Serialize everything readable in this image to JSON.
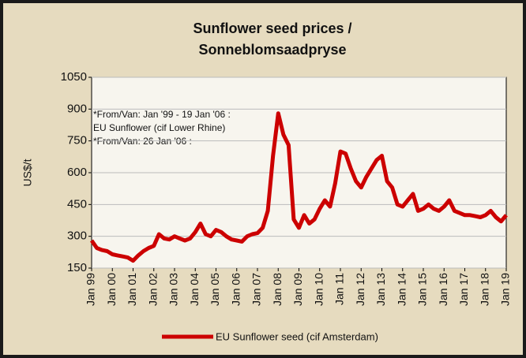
{
  "chart_data": {
    "type": "line",
    "title": [
      "Sunflower seed prices /",
      "Sonneblomsaadpryse"
    ],
    "y_label": "US$/t",
    "annotations": [
      "*From/Van:  Jan '99 - 19 Jan '06 :",
      "EU Sunflower (cif Lower Rhine)",
      "*From/Van:  26 Jan '06 :"
    ],
    "categories": [
      "Jan 99",
      null,
      null,
      null,
      "Jan 00",
      null,
      null,
      null,
      "Jan 01",
      null,
      null,
      null,
      "Jan 02",
      null,
      null,
      null,
      "Jan 03",
      null,
      null,
      null,
      "Jan 04",
      null,
      null,
      null,
      "Jan 05",
      null,
      null,
      null,
      "Jan 06",
      null,
      null,
      null,
      "Jan 07",
      null,
      null,
      null,
      "Jan 08",
      null,
      null,
      null,
      "Jan 09",
      null,
      null,
      null,
      "Jan 10",
      null,
      null,
      null,
      "Jan 11",
      null,
      null,
      null,
      "Jan 12",
      null,
      null,
      null,
      "Jan 13",
      null,
      null,
      null,
      "Jan 14",
      null,
      null,
      null,
      "Jan 15",
      null,
      null,
      null,
      "Jan 16",
      null,
      null,
      null,
      "Jan 17",
      null,
      null,
      null,
      "Jan 18",
      null,
      null,
      null,
      "Jan 19"
    ],
    "series": [
      {
        "name": "EU Sunflower seed (cif Amsterdam)",
        "color": "#cc0000",
        "values": [
          280,
          245,
          235,
          230,
          215,
          210,
          205,
          200,
          185,
          210,
          230,
          245,
          255,
          310,
          290,
          285,
          300,
          290,
          280,
          290,
          320,
          360,
          310,
          300,
          330,
          320,
          300,
          285,
          280,
          275,
          300,
          310,
          315,
          340,
          420,
          680,
          880,
          780,
          730,
          380,
          340,
          400,
          360,
          380,
          430,
          470,
          440,
          550,
          700,
          690,
          620,
          560,
          530,
          580,
          620,
          660,
          680,
          560,
          530,
          450,
          440,
          470,
          500,
          420,
          430,
          450,
          430,
          420,
          440,
          470,
          420,
          410,
          400,
          400,
          395,
          390,
          400,
          420,
          390,
          370,
          400
        ]
      }
    ],
    "ylim": [
      150,
      1050
    ],
    "yticks": [
      150,
      300,
      450,
      600,
      750,
      900,
      1050
    ],
    "grid": true
  }
}
